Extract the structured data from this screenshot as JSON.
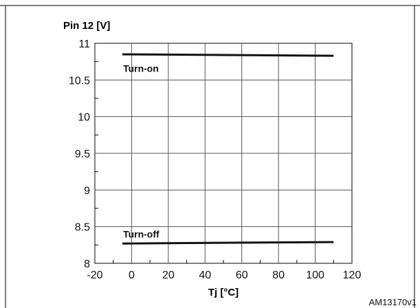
{
  "chart_data": {
    "type": "line",
    "title": "",
    "ylabel": "Pin 12 [V]",
    "xlabel": "Tj [°C]",
    "xlim": [
      -20,
      120
    ],
    "ylim": [
      8,
      11
    ],
    "x_ticks": [
      -20,
      0,
      20,
      40,
      60,
      80,
      100,
      120
    ],
    "y_ticks": [
      {
        "value": 11,
        "label": "11"
      },
      {
        "value": 10.5,
        "label": "10.5"
      },
      {
        "value": 10,
        "label": "10"
      },
      {
        "value": 9.5,
        "label": "9.5"
      },
      {
        "value": 9,
        "label": "9"
      },
      {
        "value": 8.5,
        "label": "8.5"
      },
      {
        "value": 8,
        "label": "8"
      }
    ],
    "grid": true,
    "series": [
      {
        "name": "Turn-on",
        "x": [
          -5,
          110
        ],
        "y": [
          10.85,
          10.83
        ]
      },
      {
        "name": "Turn-off",
        "x": [
          -5,
          110
        ],
        "y": [
          8.27,
          8.29
        ]
      }
    ],
    "annotations": [
      {
        "text": "Turn-on",
        "x": -5,
        "y": 10.66
      },
      {
        "text": "Turn-off",
        "x": -5,
        "y": 8.4
      }
    ],
    "colors": {
      "line": "#111111",
      "grid": "#555555",
      "frame": "#000000"
    }
  },
  "figure_ref": "AM13170v1"
}
